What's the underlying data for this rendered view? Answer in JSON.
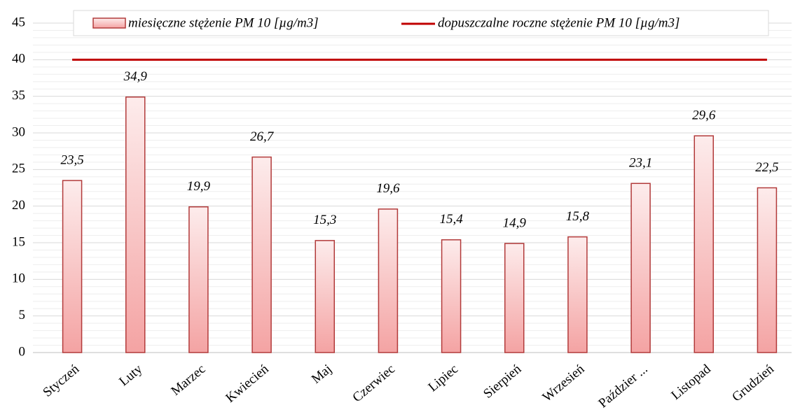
{
  "chart_data": {
    "type": "bar",
    "categories": [
      "Styczeń",
      "Luty",
      "Marzec",
      "Kwiecień",
      "Maj",
      "Czerwiec",
      "Lipiec",
      "Sierpień",
      "Wrzesień",
      "Paździer ...",
      "Listopad",
      "Grudzień"
    ],
    "series": [
      {
        "name": "miesięczne stężenie PM 10 [µg/m3]",
        "type": "bar",
        "color": "#f4a3a3",
        "stroke": "#b23a3a",
        "values": [
          23.5,
          34.9,
          19.9,
          26.7,
          15.3,
          19.6,
          15.4,
          14.9,
          15.8,
          23.1,
          29.6,
          22.5
        ],
        "value_labels": [
          "23,5",
          "34,9",
          "19,9",
          "26,7",
          "15,3",
          "19,6",
          "15,4",
          "14,9",
          "15,8",
          "23,1",
          "29,6",
          "22,5"
        ]
      },
      {
        "name": "dopuszczalne roczne stężenie PM 10 [µg/m3]",
        "type": "line",
        "color": "#c00000",
        "values": [
          40,
          40,
          40,
          40,
          40,
          40,
          40,
          40,
          40,
          40,
          40,
          40
        ]
      }
    ],
    "ylim": [
      0,
      45
    ],
    "yticks": [
      0,
      5,
      10,
      15,
      20,
      25,
      30,
      35,
      40,
      45
    ],
    "grid": true,
    "legend": "top"
  }
}
